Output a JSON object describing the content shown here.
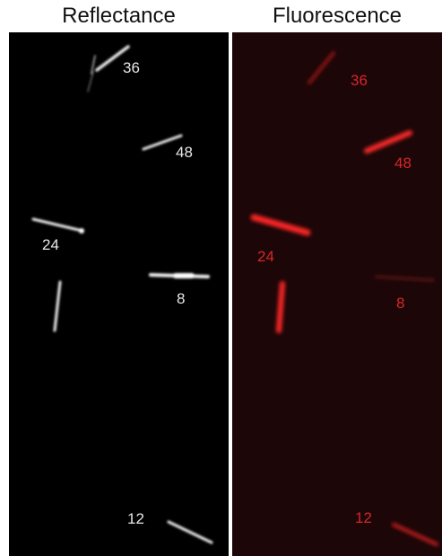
{
  "titles": {
    "reflectance": "Reflectance",
    "fluorescence": "Fluorescence"
  },
  "labels": {
    "r36": "36",
    "r48": "48",
    "r24": "24",
    "r8": "8",
    "r12": "12",
    "f36": "36",
    "f48": "48",
    "f24": "24",
    "f8": "8",
    "f12": "12"
  },
  "colors": {
    "reflectance_bg": "#000000",
    "fluorescence_bg": "#1c0607",
    "reflectance_fg": "#e6e6e6",
    "fluorescence_fg": "#d8262a",
    "divider": "#ffffff"
  }
}
